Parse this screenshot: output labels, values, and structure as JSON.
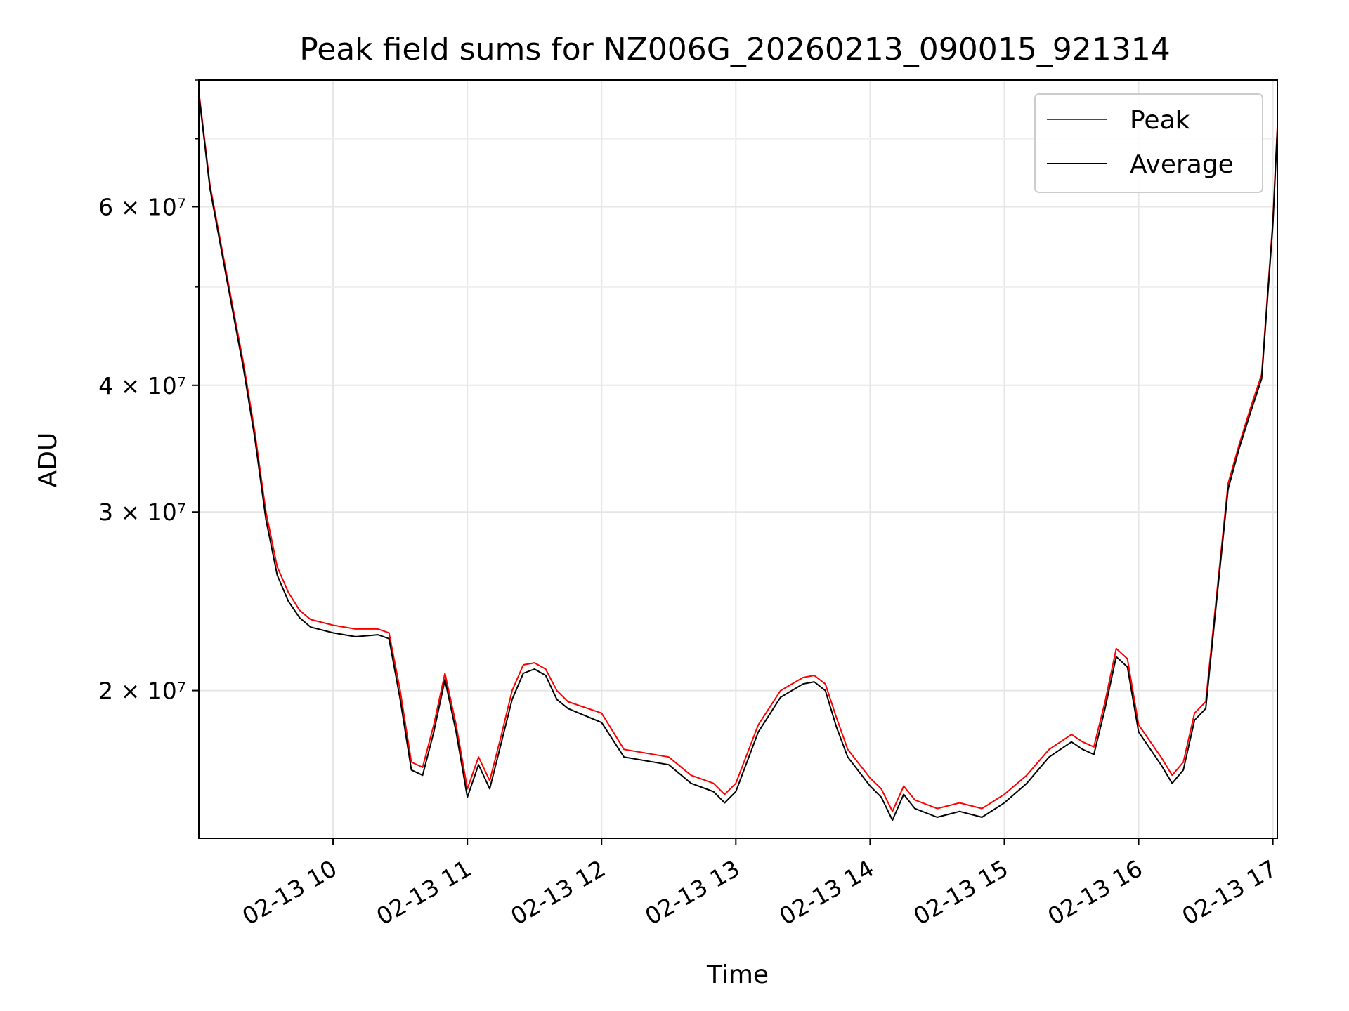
{
  "chart_data": {
    "type": "line",
    "title": "Peak field sums for NZ006G_20260213_090015_921314",
    "xlabel": "Time",
    "ylabel": "ADU",
    "yscale": "log",
    "xlim": [
      "2026-02-13 09:00",
      "2026-02-13 17:02"
    ],
    "ylim": [
      14300000,
      80000000
    ],
    "grid": true,
    "legend_position": "top-right",
    "x_ticks": [
      "02-13 10",
      "02-13 11",
      "02-13 12",
      "02-13 13",
      "02-13 14",
      "02-13 15",
      "02-13 16",
      "02-13 17"
    ],
    "y_ticks": [
      {
        "value": 20000000,
        "label": "2 × 10⁷"
      },
      {
        "value": 30000000,
        "label": "3 × 10⁷"
      },
      {
        "value": 40000000,
        "label": "4 × 10⁷"
      },
      {
        "value": 60000000,
        "label": "6 × 10⁷"
      }
    ],
    "y_minor_ticks": [
      50000000,
      70000000,
      80000000
    ],
    "x": [
      "2026-02-13 09:00",
      "2026-02-13 09:05",
      "2026-02-13 09:10",
      "2026-02-13 09:15",
      "2026-02-13 09:20",
      "2026-02-13 09:25",
      "2026-02-13 09:30",
      "2026-02-13 09:35",
      "2026-02-13 09:40",
      "2026-02-13 09:45",
      "2026-02-13 09:50",
      "2026-02-13 10:00",
      "2026-02-13 10:10",
      "2026-02-13 10:20",
      "2026-02-13 10:25",
      "2026-02-13 10:30",
      "2026-02-13 10:35",
      "2026-02-13 10:40",
      "2026-02-13 10:45",
      "2026-02-13 10:50",
      "2026-02-13 10:55",
      "2026-02-13 11:00",
      "2026-02-13 11:05",
      "2026-02-13 11:10",
      "2026-02-13 11:15",
      "2026-02-13 11:20",
      "2026-02-13 11:25",
      "2026-02-13 11:30",
      "2026-02-13 11:35",
      "2026-02-13 11:40",
      "2026-02-13 11:45",
      "2026-02-13 12:00",
      "2026-02-13 12:10",
      "2026-02-13 12:30",
      "2026-02-13 12:40",
      "2026-02-13 12:50",
      "2026-02-13 12:55",
      "2026-02-13 13:00",
      "2026-02-13 13:10",
      "2026-02-13 13:20",
      "2026-02-13 13:30",
      "2026-02-13 13:35",
      "2026-02-13 13:40",
      "2026-02-13 13:45",
      "2026-02-13 13:50",
      "2026-02-13 14:00",
      "2026-02-13 14:05",
      "2026-02-13 14:10",
      "2026-02-13 14:15",
      "2026-02-13 14:20",
      "2026-02-13 14:30",
      "2026-02-13 14:40",
      "2026-02-13 14:50",
      "2026-02-13 15:00",
      "2026-02-13 15:10",
      "2026-02-13 15:20",
      "2026-02-13 15:30",
      "2026-02-13 15:35",
      "2026-02-13 15:40",
      "2026-02-13 15:45",
      "2026-02-13 15:50",
      "2026-02-13 15:55",
      "2026-02-13 16:00",
      "2026-02-13 16:10",
      "2026-02-13 16:15",
      "2026-02-13 16:20",
      "2026-02-13 16:25",
      "2026-02-13 16:30",
      "2026-02-13 16:35",
      "2026-02-13 16:40",
      "2026-02-13 16:45",
      "2026-02-13 16:50",
      "2026-02-13 16:55",
      "2026-02-13 17:00",
      "2026-02-13 17:02"
    ],
    "series": [
      {
        "name": "Peak",
        "color": "#ff0000",
        "values": [
          78000000,
          63000000,
          55000000,
          48000000,
          42000000,
          36000000,
          30000000,
          26500000,
          25000000,
          24000000,
          23500000,
          23200000,
          23000000,
          23000000,
          22800000,
          20000000,
          17000000,
          16800000,
          18500000,
          20800000,
          18500000,
          16000000,
          17200000,
          16300000,
          18000000,
          20000000,
          21200000,
          21300000,
          21000000,
          20000000,
          19500000,
          19000000,
          17500000,
          17200000,
          16500000,
          16200000,
          15800000,
          16200000,
          18500000,
          20000000,
          20600000,
          20700000,
          20300000,
          18800000,
          17500000,
          16400000,
          16000000,
          15200000,
          16100000,
          15600000,
          15300000,
          15500000,
          15300000,
          15800000,
          16500000,
          17500000,
          18100000,
          17800000,
          17600000,
          19500000,
          22000000,
          21500000,
          18500000,
          17200000,
          16500000,
          17000000,
          19000000,
          19500000,
          25000000,
          32000000,
          35000000,
          38000000,
          41000000,
          58000000,
          72000000
        ]
      },
      {
        "name": "Average",
        "color": "#000000",
        "values": [
          77500000,
          62500000,
          54500000,
          47500000,
          41500000,
          35500000,
          29500000,
          26000000,
          24500000,
          23600000,
          23100000,
          22800000,
          22600000,
          22700000,
          22500000,
          19600000,
          16700000,
          16500000,
          18200000,
          20500000,
          18200000,
          15700000,
          16900000,
          16000000,
          17700000,
          19600000,
          20800000,
          21000000,
          20700000,
          19600000,
          19200000,
          18600000,
          17200000,
          16900000,
          16200000,
          15900000,
          15500000,
          15900000,
          18200000,
          19700000,
          20300000,
          20400000,
          20000000,
          18400000,
          17200000,
          16100000,
          15700000,
          14900000,
          15800000,
          15300000,
          15000000,
          15200000,
          15000000,
          15500000,
          16200000,
          17200000,
          17800000,
          17500000,
          17300000,
          19200000,
          21600000,
          21100000,
          18200000,
          16900000,
          16200000,
          16700000,
          18700000,
          19200000,
          24700000,
          31600000,
          34700000,
          37600000,
          40600000,
          57500000,
          71500000
        ]
      }
    ]
  }
}
